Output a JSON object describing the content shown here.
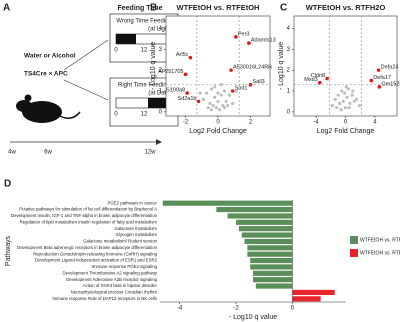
{
  "panel_a": {
    "panel": "A",
    "treatment": "Water or Alcohol",
    "genotype": "TS4Cre × APC",
    "header": "Feeding Time",
    "wrong": "Wrong Time Feeding",
    "wrong_note": "(at Light)",
    "right": "Right Time Feeding",
    "right_note": "(at Dark)",
    "start": "0",
    "mid": "12",
    "start2": "0",
    "mid2": "12",
    "ages": [
      "4w",
      "6w",
      "12w"
    ]
  },
  "chart_data": [
    {
      "type": "scatter",
      "panel": "B",
      "title": "WTFEtOH vs. RTFEtOH",
      "x_label": "Log2 Fold Change",
      "y_label": "- Log10 q value",
      "xlim": [
        -3.2,
        3.2
      ],
      "ylim": [
        -0.2,
        4.6
      ],
      "xticks": [
        -2,
        0,
        2
      ],
      "yticks": [
        0,
        1,
        2,
        3,
        4
      ],
      "thresholds": {
        "x": [
          -1.3,
          1.3
        ],
        "y": 1.3
      },
      "points": {
        "color": "#bdbdbd",
        "x": [
          -0.9,
          -0.7,
          -0.5,
          -0.4,
          -0.3,
          -0.2,
          -0.1,
          0,
          0.1,
          0.2,
          0.3,
          0.4,
          0.5,
          0.7,
          0.9,
          -0.6,
          0.6,
          -0.2,
          0.2,
          -1.1,
          1.1,
          0,
          -0.4,
          0.4
        ],
        "y": [
          0.6,
          0.9,
          0.4,
          1.1,
          0.3,
          0.7,
          0.2,
          0.5,
          0.1,
          0.8,
          0.3,
          1.0,
          0.5,
          0.8,
          0.4,
          0.2,
          0.3,
          1.2,
          1.3,
          0.9,
          1.0,
          0.9,
          0.1,
          0.2
        ]
      },
      "labeled": {
        "color": "#e31a1c",
        "labels": [
          "Per3",
          "Adamts13",
          "Arl5c",
          "AF251705",
          "A530016L24Rik",
          "Sall3",
          "Sod1",
          "S100a8",
          "Sd2a1b"
        ],
        "x": [
          1.1,
          1.9,
          -1.7,
          -2.0,
          0.8,
          2.0,
          0.9,
          -1.9,
          -1.2
        ],
        "y": [
          3.6,
          3.3,
          2.6,
          1.8,
          2.0,
          1.3,
          1.0,
          0.9,
          0.5
        ]
      }
    },
    {
      "type": "scatter",
      "panel": "C",
      "title": "WTFEtOH vs. RTFH2O",
      "x_label": "Log2 Fold Change",
      "y_label": "- Log10 q value",
      "xlim": [
        -7,
        7
      ],
      "ylim": [
        -0.2,
        4.6
      ],
      "xticks": [
        -4,
        0,
        4
      ],
      "yticks": [
        0,
        1,
        2,
        3,
        4
      ],
      "thresholds": {
        "x": [
          -2.2,
          2.2
        ],
        "y": 1.3
      },
      "points": {
        "color": "#bdbdbd",
        "x": [
          -1.8,
          -1.4,
          -1,
          -0.8,
          -0.5,
          -0.3,
          -0.1,
          0,
          0.2,
          0.4,
          0.6,
          0.9,
          1.2,
          1.5,
          1.9,
          -1.2,
          1,
          -0.6,
          0.5,
          0.1
        ],
        "y": [
          0.3,
          0.6,
          0.8,
          0.4,
          1.0,
          0.5,
          0.9,
          0.2,
          0.7,
          1.1,
          0.4,
          0.8,
          0.5,
          0.6,
          0.3,
          0.2,
          1.0,
          0.1,
          0.2,
          1.2
        ]
      },
      "labeled": {
        "color": "#e31a1c",
        "labels": [
          "Defa24",
          "Cldn8",
          "Mxd3",
          "Defa17",
          "Gm15284"
        ],
        "x": [
          4.5,
          -2.5,
          -3.5,
          3.5,
          4.6
        ],
        "y": [
          2.0,
          1.6,
          1.4,
          1.5,
          1.2
        ]
      }
    },
    {
      "type": "bar",
      "panel": "D",
      "x_label": "- Log10 q value",
      "y_label": "Pathways",
      "xlim": [
        -4.7,
        1.9
      ],
      "xticks": [
        -4,
        -2,
        0
      ],
      "categories": [
        "PGE2 pathways in cancer",
        "Putative pathways for stimulation of fat cell differentiation by Bisphenol A",
        "Development Insulin, IGF-1 and TNF-alpha in brown adipocyte differentiation",
        "Regulation of lipid metabolism Insulin regulation of fatty acid metabolism",
        "Galactose metabolism",
        "Glycogen metabolism",
        "Galactose metabolism/ Rodent version",
        "Development Beta adrenergic receptors in brown adipocyte differentiation",
        "Reproduction Gonadotropin-releasing hormone (GnRH) signaling",
        "Development Ligand-independent activation of ESR1 and ESR2",
        "Immune response PGE2 signaling",
        "Development Thromboxane A2 signaling pathway",
        "Development Adenosine A2B receptor signaling",
        "Action of GSK3 beta in bipolar disorder",
        "Neurophysiological process Circadian rhythm",
        "Immune response Role of DAP12 receptors in NK cells"
      ],
      "series": [
        {
          "name": "WTFEtOH vs. RTFEtOH",
          "color": "#5a8f5a",
          "values": [
            -4.6,
            -2.7,
            -2.3,
            -2.0,
            -1.9,
            -1.8,
            -1.7,
            -1.6,
            -1.6,
            -1.5,
            -1.5,
            -1.4,
            -1.4,
            -1.3,
            null,
            null
          ]
        },
        {
          "name": "WTFEtOH vs. RTFH2O",
          "color": "#e8252a",
          "values": [
            null,
            null,
            null,
            null,
            null,
            null,
            null,
            null,
            null,
            null,
            null,
            null,
            null,
            null,
            1.5,
            1.0
          ]
        }
      ]
    }
  ]
}
